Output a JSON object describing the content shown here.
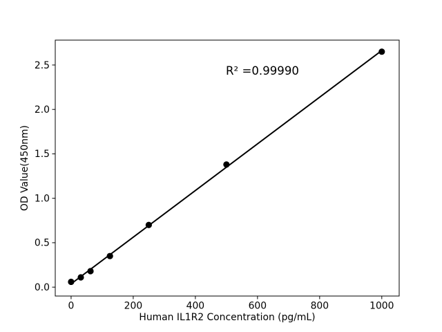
{
  "chart_data": {
    "type": "scatter",
    "title": "",
    "xlabel": "Human IL1R2 Concentration (pg/mL)",
    "ylabel": "OD Value(450nm)",
    "annotation": "R² =0.99990",
    "x": [
      0,
      31.25,
      62.5,
      125,
      250,
      500,
      1000
    ],
    "y": [
      0.06,
      0.11,
      0.18,
      0.35,
      0.7,
      1.38,
      2.65
    ],
    "fit": "linear-regression",
    "xlim": [
      -51,
      1056
    ],
    "ylim": [
      -0.1,
      2.78
    ],
    "xticks": {
      "values": [
        0,
        200,
        400,
        600,
        800,
        1000
      ],
      "labels": [
        "0",
        "200",
        "400",
        "600",
        "800",
        "1000"
      ]
    },
    "yticks": {
      "values": [
        0.0,
        0.5,
        1.0,
        1.5,
        2.0,
        2.5
      ],
      "labels": [
        "0.0",
        "0.5",
        "1.0",
        "1.5",
        "2.0",
        "2.5"
      ]
    },
    "grid": false,
    "legend": null,
    "colors": {
      "marker": "#000000",
      "line": "#000000",
      "axis": "#000000",
      "text": "#000000",
      "background": "#ffffff"
    }
  }
}
